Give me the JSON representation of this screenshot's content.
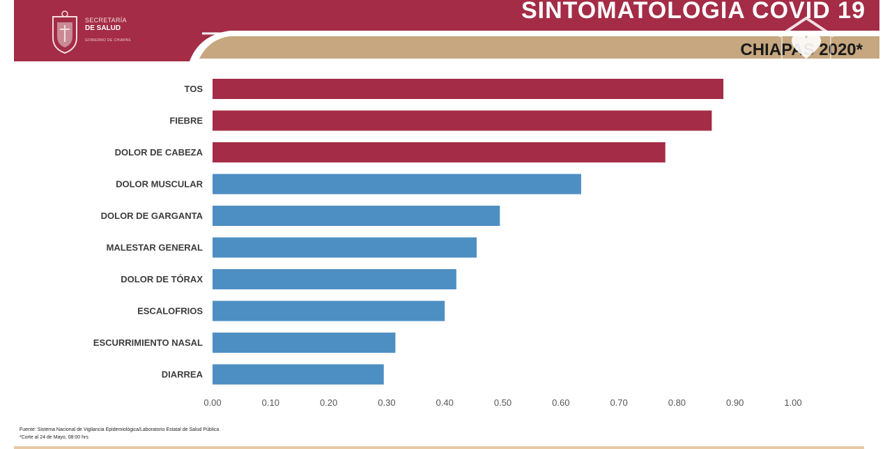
{
  "header": {
    "logo_line1": "SECRETARÍA",
    "logo_line2": "DE SALUD",
    "logo_line3": "GOBIERNO DE CHIAPAS",
    "title": "SINTOMATOLOGIA COVID 19",
    "subtitle": "CHIAPAS 2020*",
    "colors": {
      "brand_red": "#a42c46",
      "gold": "#c6a77f"
    }
  },
  "chart_data": {
    "type": "bar",
    "orientation": "horizontal",
    "categories": [
      "TOS",
      "FIEBRE",
      "DOLOR DE CABEZA",
      "DOLOR MUSCULAR",
      "DOLOR DE GARGANTA",
      "MALESTAR GENERAL",
      "DOLOR DE TÓRAX",
      "ESCALOFRIOS",
      "ESCURRIMIENTO NASAL",
      "DIARREA"
    ],
    "values": [
      0.88,
      0.86,
      0.78,
      0.635,
      0.495,
      0.455,
      0.42,
      0.4,
      0.315,
      0.295
    ],
    "bar_colors": [
      "#a42c46",
      "#a42c46",
      "#a42c46",
      "#4e8fc3",
      "#4e8fc3",
      "#4e8fc3",
      "#4e8fc3",
      "#4e8fc3",
      "#4e8fc3",
      "#4e8fc3"
    ],
    "xlim": [
      0,
      1.0
    ],
    "x_ticks": [
      "0.00",
      "0.10",
      "0.20",
      "0.30",
      "0.40",
      "0.50",
      "0.60",
      "0.70",
      "0.80",
      "0.90",
      "1.00"
    ],
    "grid": false,
    "legend": "none"
  },
  "footer": {
    "source": "Fuente: Sistema Nacional de Vigilancia Epidemiológica/Laboratorio Estatal de Salud Pública",
    "note": "*Corte al 24 de Mayo, 08:00 hrs"
  }
}
